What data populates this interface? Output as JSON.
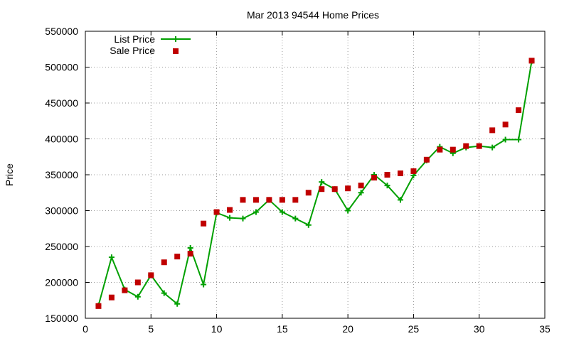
{
  "chart_data": {
    "type": "line",
    "title": "Mar 2013 94544 Home Prices",
    "xlabel": "",
    "ylabel": "Price",
    "xlim": [
      0,
      35
    ],
    "ylim": [
      150000,
      550000
    ],
    "xticks": [
      0,
      5,
      10,
      15,
      20,
      25,
      30,
      35
    ],
    "yticks": [
      150000,
      200000,
      250000,
      300000,
      350000,
      400000,
      450000,
      500000,
      550000
    ],
    "grid": true,
    "legend_position": "top-left",
    "series": [
      {
        "name": "List Price",
        "style": "line-with-plus-markers",
        "color": "#00a000",
        "x": [
          1,
          2,
          3,
          4,
          5,
          6,
          7,
          8,
          9,
          10,
          11,
          12,
          13,
          14,
          15,
          16,
          17,
          18,
          19,
          20,
          21,
          22,
          23,
          24,
          25,
          26,
          27,
          28,
          29,
          30,
          31,
          32,
          33,
          34
        ],
        "values": [
          168000,
          235000,
          190000,
          180000,
          210000,
          185000,
          170000,
          248000,
          197000,
          297000,
          290000,
          289000,
          298000,
          315000,
          298000,
          289000,
          280000,
          340000,
          330000,
          300000,
          325000,
          350000,
          335000,
          315000,
          349000,
          370000,
          389000,
          380000,
          388000,
          390000,
          388000,
          399000,
          399000,
          508000
        ]
      },
      {
        "name": "Sale Price",
        "style": "square-markers",
        "color": "#c00000",
        "x": [
          1,
          2,
          3,
          4,
          5,
          6,
          7,
          8,
          9,
          10,
          11,
          12,
          13,
          14,
          15,
          16,
          17,
          18,
          19,
          20,
          21,
          22,
          23,
          24,
          25,
          26,
          27,
          28,
          29,
          30,
          31,
          32,
          33,
          34
        ],
        "values": [
          167000,
          179000,
          189000,
          200000,
          210000,
          228000,
          236000,
          240000,
          282000,
          298000,
          301000,
          315000,
          315000,
          315000,
          315000,
          315000,
          325000,
          330000,
          330000,
          331000,
          335000,
          346000,
          350000,
          352000,
          355000,
          371000,
          385000,
          385000,
          390000,
          390000,
          412000,
          420000,
          440000,
          509000
        ]
      }
    ]
  }
}
